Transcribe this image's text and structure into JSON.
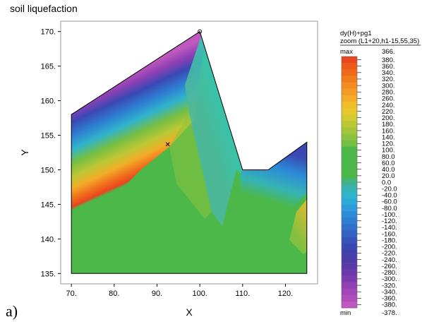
{
  "title": "soil liquefaction",
  "figure_label": "a)",
  "chart_data": {
    "type": "heatmap",
    "xlabel": "X",
    "ylabel": "Y",
    "xlim": [
      67.5,
      127.5
    ],
    "ylim": [
      133.5,
      171.5
    ],
    "x_ticks": [
      "70.",
      "80.",
      "90.",
      "100.",
      "110.",
      "120."
    ],
    "x_tick_values": [
      70,
      80,
      90,
      100,
      110,
      120
    ],
    "y_ticks": [
      "135.",
      "140.",
      "145.",
      "150.",
      "155.",
      "160.",
      "165.",
      "170."
    ],
    "y_tick_values": [
      135,
      140,
      145,
      150,
      155,
      160,
      165,
      170
    ],
    "grid": false,
    "domain_outline": [
      [
        70,
        135
      ],
      [
        70,
        158
      ],
      [
        100,
        170
      ],
      [
        110,
        150
      ],
      [
        116,
        150
      ],
      [
        125,
        154
      ],
      [
        125,
        135
      ]
    ],
    "markers": [
      {
        "shape": "circle",
        "x": 100,
        "y": 170
      },
      {
        "shape": "cross",
        "x": 92.5,
        "y": 153.7
      }
    ],
    "legend": {
      "header_line1": "dy(H)+pg1",
      "header_line2": "zoom (L1+20,h1-15,55,35)",
      "max_label": "max",
      "min_label": "min",
      "max_value": "366.",
      "min_value": "-378.",
      "levels": [
        "380.",
        "360.",
        "340.",
        "320.",
        "300.",
        "280.",
        "260.",
        "240.",
        "220.",
        "200.",
        "180.",
        "160.",
        "140.",
        "120.",
        "100.",
        "80.0",
        "60.0",
        "40.0",
        "20.0",
        "0.0",
        "-20.0",
        "-40.0",
        "-60.0",
        "-80.0",
        "-100.",
        "-120.",
        "-140.",
        "-160.",
        "-180.",
        "-200.",
        "-220.",
        "-240.",
        "-260.",
        "-280.",
        "-300.",
        "-320.",
        "-340.",
        "-360.",
        "-380."
      ],
      "colors": [
        "#e8461e",
        "#ee5a1a",
        "#f06a1c",
        "#f27c1e",
        "#f48c22",
        "#f49c24",
        "#f2ac28",
        "#f0bc2a",
        "#e6c82c",
        "#d4cc2e",
        "#bcc834",
        "#a4c43a",
        "#8cc23e",
        "#74be44",
        "#4cb84a",
        "#4cb84a",
        "#4cb84a",
        "#4cb84a",
        "#4cb84a",
        "#40b488",
        "#36b4b4",
        "#30b4cc",
        "#2eaad8",
        "#2c9cdc",
        "#2c8cd8",
        "#2e7ed2",
        "#3070cc",
        "#3262c4",
        "#3454bc",
        "#3a48b4",
        "#4240ac",
        "#4c3ca8",
        "#5a3aa8",
        "#6a3aaa",
        "#7c3cae",
        "#8e40b4",
        "#a046b8",
        "#b04ebc",
        "#c058c0"
      ]
    }
  }
}
